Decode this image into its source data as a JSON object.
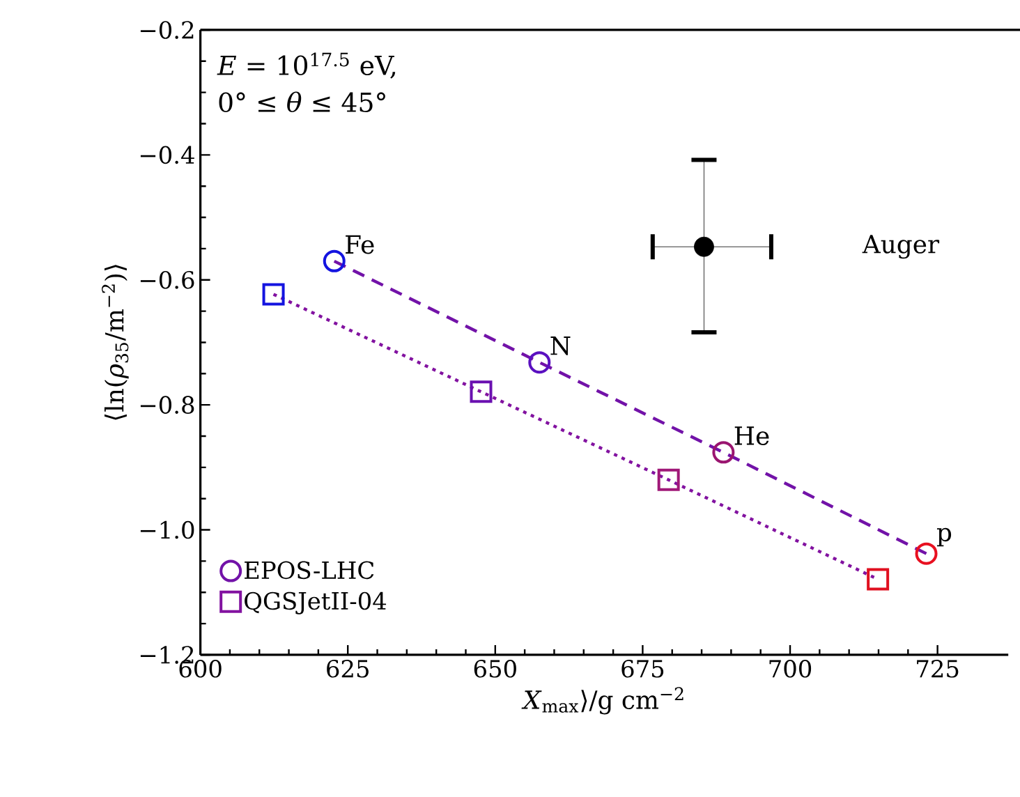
{
  "chart_data": {
    "type": "line",
    "xlabel": "*X*$_{max}$⟩/g cm$^{−2}$",
    "ylabel": "⟨ln(*ρ*$_{35}$/m$^{−2}$)⟩",
    "xlim": [
      600,
      737
    ],
    "ylim": [
      -1.2,
      -0.2
    ],
    "xticks": [
      600,
      625,
      650,
      675,
      700,
      725
    ],
    "yticks": [
      {
        "value": -1.2,
        "label": "−1.2"
      },
      {
        "value": -1.0,
        "label": "−1.0"
      },
      {
        "value": -0.8,
        "label": "−0.8"
      },
      {
        "value": -0.6,
        "label": "−0.6"
      },
      {
        "value": -0.4,
        "label": "−0.4"
      },
      {
        "value": -0.2,
        "label": "−0.2"
      }
    ],
    "legend": "bottom left",
    "series": [
      {
        "name": "EPOS-LHC",
        "color": "#7212a8",
        "marker": "circle",
        "line_style": "dashed",
        "x": [
          622.7,
          657.5,
          688.7,
          723.1
        ],
        "values": [
          -0.57,
          -0.732,
          -0.876,
          -1.038
        ],
        "colors": [
          "#1414e0",
          "#5a10c0",
          "#9a1570",
          "#e81020"
        ]
      },
      {
        "name": "QGSJetII-04",
        "color": "#8212a0",
        "marker": "square",
        "line_style": "dotted",
        "x": [
          612.4,
          647.6,
          679.4,
          714.9
        ],
        "values": [
          -0.623,
          -0.779,
          -0.92,
          -1.079
        ],
        "colors": [
          "#1414e0",
          "#6a10b0",
          "#a01878",
          "#e01020"
        ]
      },
      {
        "type": "scatter",
        "marker": "circle",
        "color": "#000000",
        "x": [
          685.4
        ],
        "values": [
          -0.547
        ],
        "errors": [
          [
            -0.684,
            -0.408
          ]
        ],
        "xerrors": [
          [
            676.7,
            696.8
          ]
        ]
      }
    ],
    "annotations": [
      "*E* = 10$^{17.5}$ eV,",
      "0° ≤ *θ* ≤ 45°",
      {
        "text": "Fe",
        "x": 622.7,
        "y": -0.57
      },
      {
        "text": "N",
        "x": 657.5,
        "y": -0.732
      },
      {
        "text": "He",
        "x": 688.7,
        "y": -0.876
      },
      {
        "text": "p",
        "x": 723.1,
        "y": -1.038
      },
      "Auger"
    ]
  }
}
